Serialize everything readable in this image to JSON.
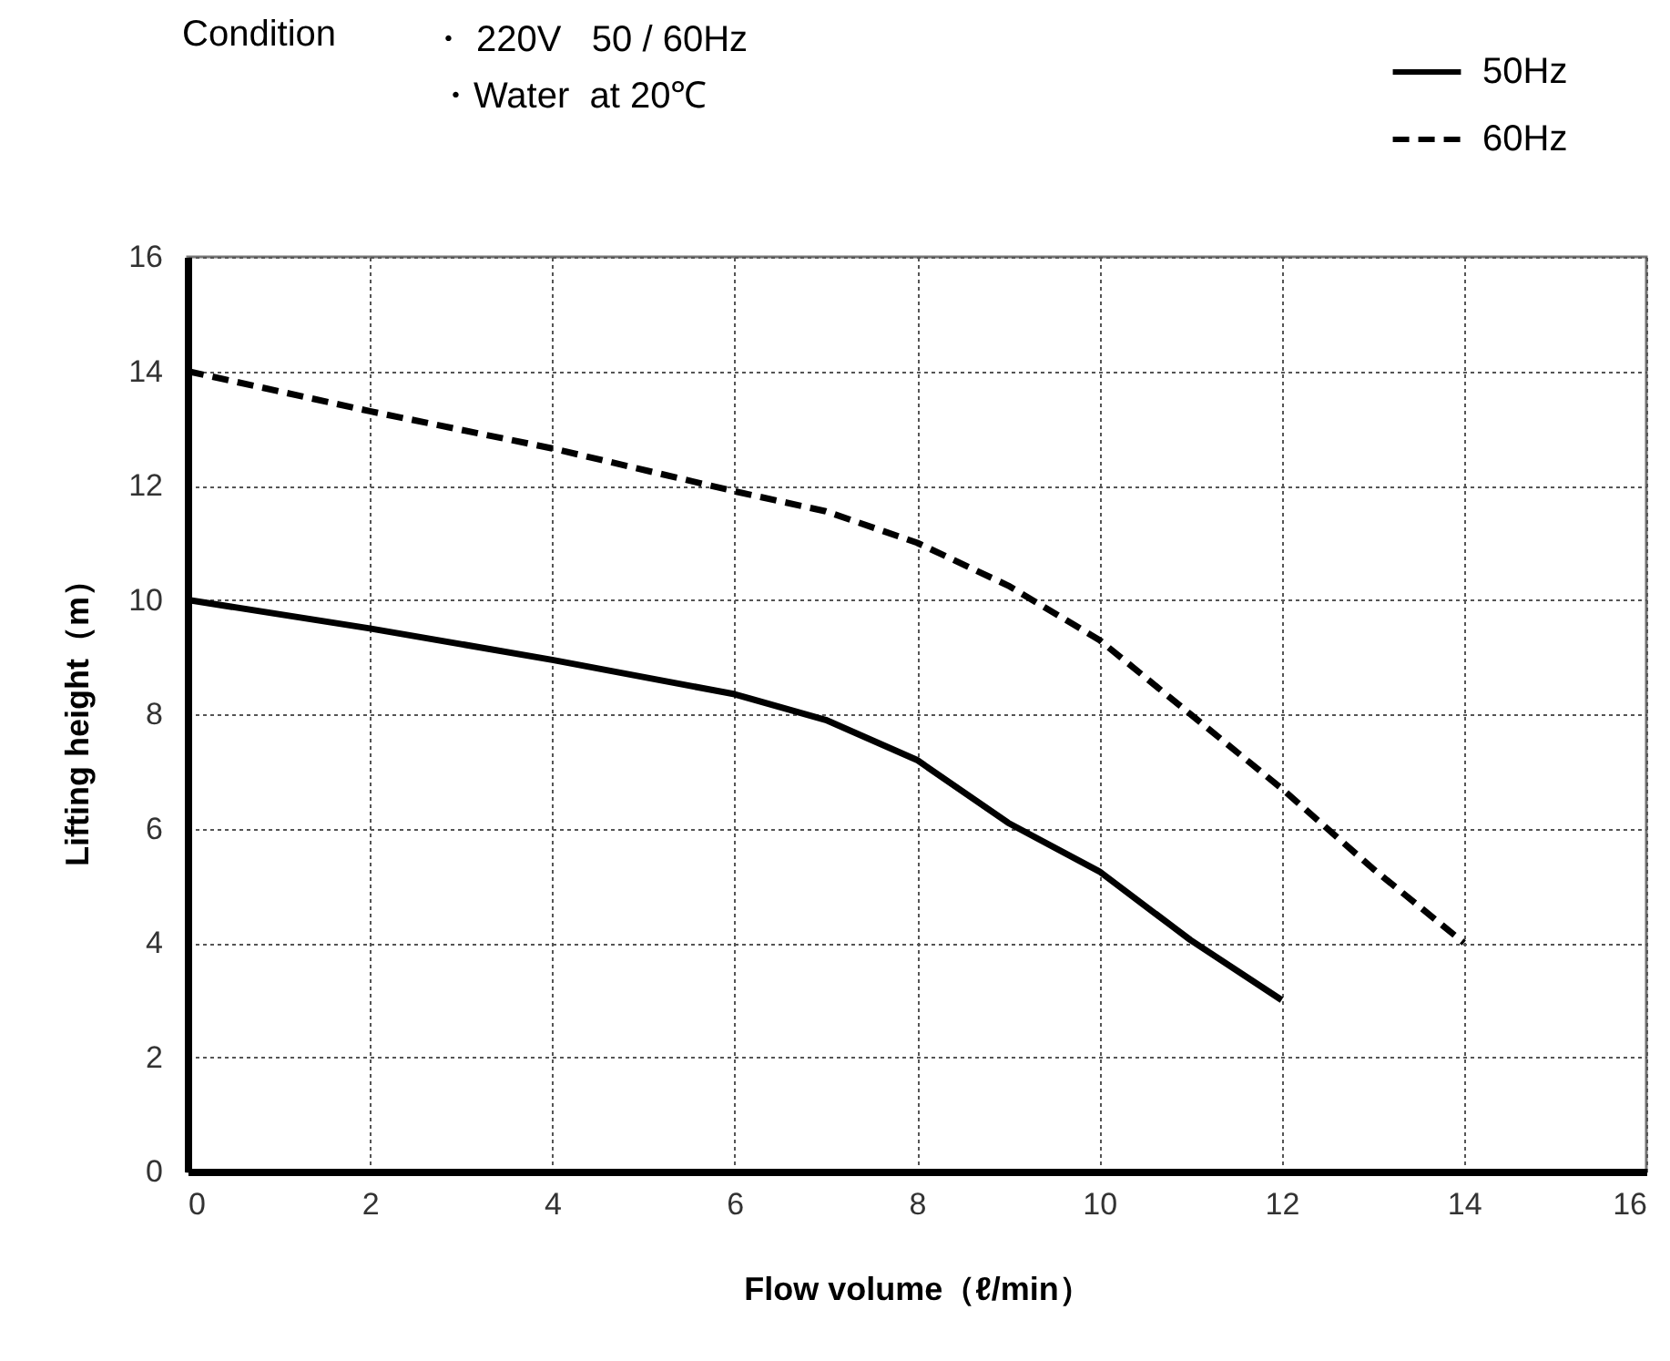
{
  "chart_data": {
    "type": "line",
    "xlabel": "Flow volume（ℓ/min）",
    "ylabel": "Lifting height（m）",
    "annotations": [
      "Condition",
      "・ 220V   50 / 60Hz",
      "・Water  at 20℃"
    ],
    "series": [
      {
        "name": "50Hz",
        "color": "#000000",
        "line_style": "solid",
        "x": [
          0,
          2,
          4,
          6,
          7,
          8,
          9,
          10,
          11,
          12
        ],
        "values": [
          10,
          9.5,
          8.95,
          8.35,
          7.9,
          7.2,
          6.1,
          5.25,
          4.05,
          3
        ]
      },
      {
        "name": "60Hz",
        "color": "#000000",
        "line_style": "dashed",
        "x": [
          0,
          2,
          4,
          6,
          7,
          8,
          9,
          10,
          11,
          12,
          13,
          14
        ],
        "values": [
          14,
          13.3,
          12.65,
          11.9,
          11.55,
          11,
          10.25,
          9.3,
          8,
          6.7,
          5.3,
          4
        ]
      }
    ],
    "xlim": [
      0,
      16
    ],
    "xticks": [
      0,
      2,
      4,
      6,
      8,
      10,
      12,
      14,
      16
    ],
    "ylim": [
      0,
      16
    ],
    "yticks": [
      0,
      2,
      4,
      6,
      8,
      10,
      12,
      14,
      16
    ],
    "grid": true,
    "legend": "top right",
    "marker": "none"
  }
}
